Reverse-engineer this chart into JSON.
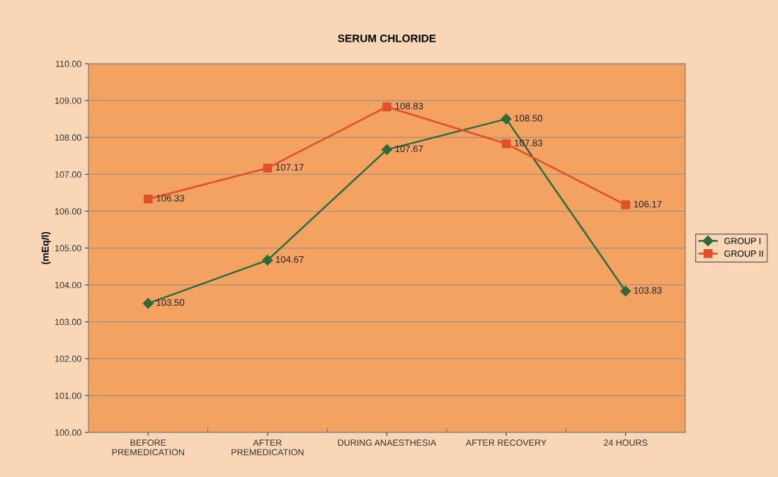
{
  "chart_data": {
    "type": "line",
    "title": "SERUM CHLORIDE",
    "ylabel": "(mEq/l)",
    "categories": [
      "BEFORE\nPREMEDICATION",
      "AFTER\nPREMEDICATION",
      "DURING ANAESTHESIA",
      "AFTER RECOVERY",
      "24 HOURS"
    ],
    "series": [
      {
        "name": "GROUP I",
        "color": "#2f6b3a",
        "marker": "diamond",
        "values": [
          103.5,
          104.67,
          107.67,
          108.5,
          103.83
        ],
        "value_labels": [
          "103.50",
          "104.67",
          "107.67",
          "108.50",
          "103.83"
        ]
      },
      {
        "name": "GROUP II",
        "color": "#e0502a",
        "marker": "square",
        "values": [
          106.33,
          107.17,
          108.83,
          107.83,
          106.17
        ],
        "value_labels": [
          "106.33",
          "107.17",
          "108.83",
          "107.83",
          "106.17"
        ]
      }
    ],
    "ylim": [
      100,
      110
    ],
    "yticks": [
      {
        "value": 100,
        "label": "100.00"
      },
      {
        "value": 101,
        "label": "101.00"
      },
      {
        "value": 102,
        "label": "102.00"
      },
      {
        "value": 103,
        "label": "103.00"
      },
      {
        "value": 104,
        "label": "104.00"
      },
      {
        "value": 105,
        "label": "105.00"
      },
      {
        "value": 106,
        "label": "106.00"
      },
      {
        "value": 107,
        "label": "107.00"
      },
      {
        "value": 108,
        "label": "108.00"
      },
      {
        "value": 109,
        "label": "109.00"
      },
      {
        "value": 110,
        "label": "110.00"
      }
    ],
    "grid": "y",
    "legend": "right",
    "line_style": "solid"
  }
}
